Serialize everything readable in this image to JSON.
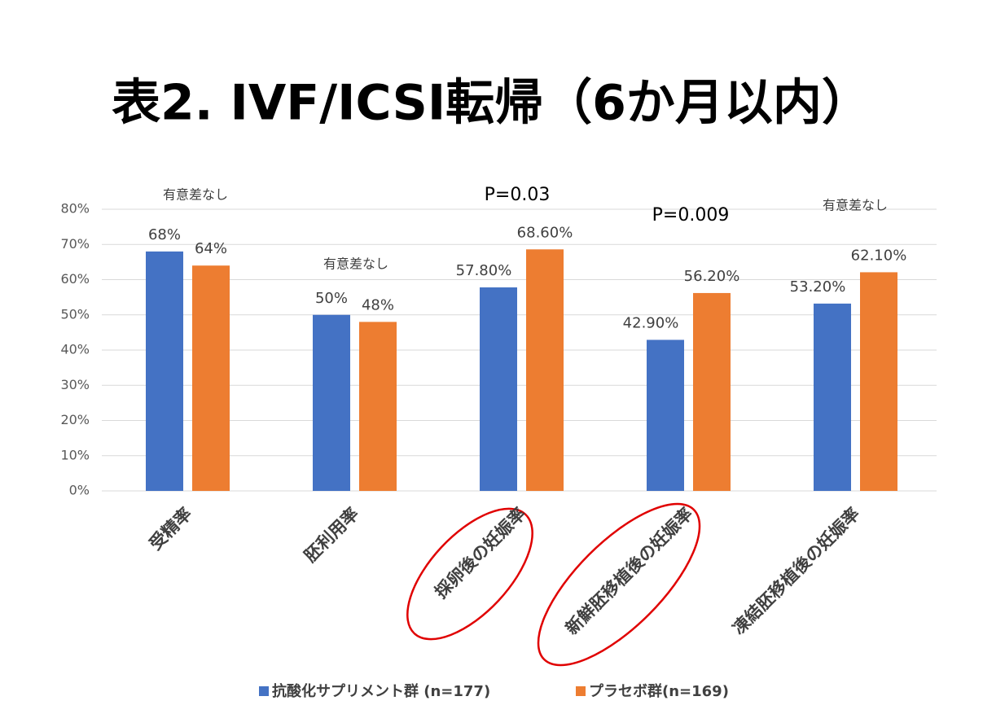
{
  "chart_data": {
    "type": "bar",
    "title": "表2. IVF/ICSI転帰（6か月以内）",
    "categories": [
      "受精率",
      "胚利用率",
      "採卵後の妊娠率",
      "新鮮胚移植後の妊娠率",
      "凍結胚移植後の妊娠率"
    ],
    "series": [
      {
        "name": "抗酸化サプリメント群 (n=177)",
        "color": "#4472c4",
        "values": [
          68,
          50,
          57.8,
          42.9,
          53.2
        ],
        "value_labels": [
          "68%",
          "50%",
          "57.80%",
          "42.90%",
          "53.20%"
        ]
      },
      {
        "name": "プラセボ群(n=169)",
        "color": "#ed7d31",
        "values": [
          64,
          48,
          68.6,
          56.2,
          62.1
        ],
        "value_labels": [
          "64%",
          "48%",
          "68.60%",
          "56.20%",
          "62.10%"
        ]
      }
    ],
    "annotations": [
      "有意差なし",
      "有意差なし",
      "P=0.03",
      "P=0.009",
      "有意差なし"
    ],
    "ylim": [
      0,
      80
    ],
    "yticks": [
      {
        "value": 0,
        "label": "0%"
      },
      {
        "value": 10,
        "label": "10%"
      },
      {
        "value": 20,
        "label": "20%"
      },
      {
        "value": 30,
        "label": "30%"
      },
      {
        "value": 40,
        "label": "40%"
      },
      {
        "value": 50,
        "label": "50%"
      },
      {
        "value": 60,
        "label": "60%"
      },
      {
        "value": 70,
        "label": "70%"
      },
      {
        "value": 80,
        "label": "80%"
      }
    ],
    "grid": true
  }
}
